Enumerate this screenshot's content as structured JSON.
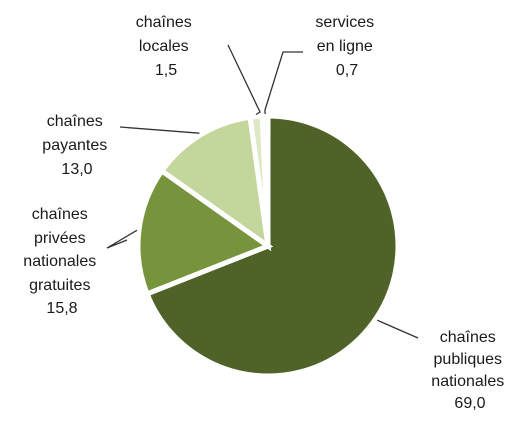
{
  "chart_data": {
    "type": "pie",
    "slices": [
      {
        "label": [
          "chaînes",
          "publiques",
          "nationales"
        ],
        "value": 69.0,
        "value_label": "69,0",
        "color": "#4f6228"
      },
      {
        "label": [
          "chaînes",
          "privées",
          "nationales",
          "gratuites"
        ],
        "value": 15.8,
        "value_label": "15,8",
        "color": "#77933c"
      },
      {
        "label": [
          "chaînes",
          "payantes"
        ],
        "value": 13.0,
        "value_label": "13,0",
        "color": "#c3d69b"
      },
      {
        "label": [
          "chaînes",
          "locales"
        ],
        "value": 1.5,
        "value_label": "1,5",
        "color": "#dde8c6"
      },
      {
        "label": [
          "services",
          "en ligne"
        ],
        "value": 0.7,
        "value_label": "0,7",
        "color": "#ebf1de"
      }
    ],
    "start_angle": "12 o'clock",
    "direction": "clockwise",
    "legend": "none",
    "labels": "outside with leader lines"
  }
}
